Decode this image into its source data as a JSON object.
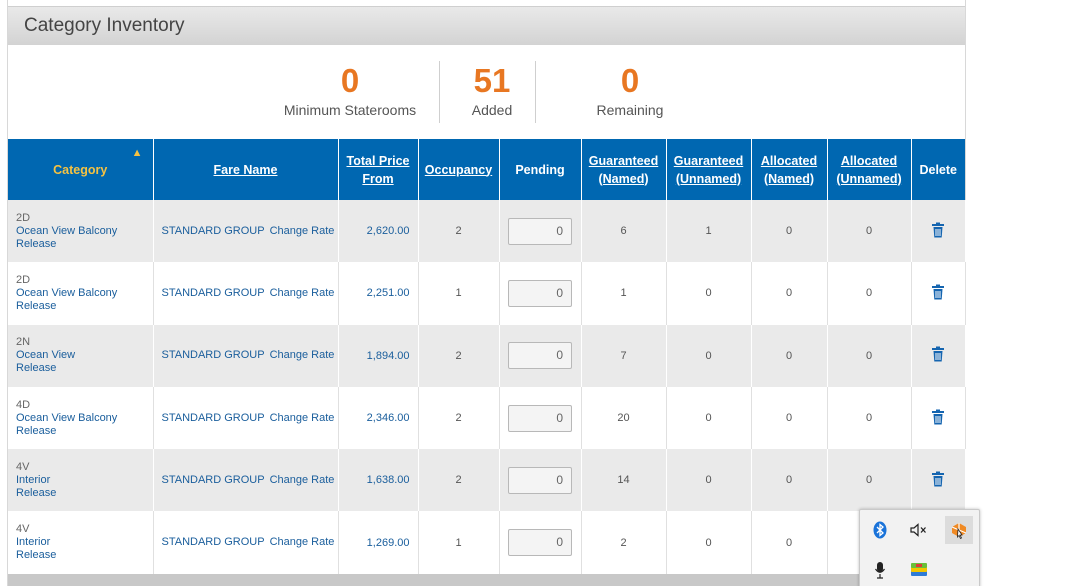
{
  "panel": {
    "title": "Category Inventory"
  },
  "stats": [
    {
      "value": "0",
      "label": "Minimum Staterooms"
    },
    {
      "value": "51",
      "label": "Added"
    },
    {
      "value": "0",
      "label": "Remaining"
    }
  ],
  "table": {
    "headers": {
      "category": "Category",
      "fare_name": "Fare Name",
      "price_l1": "Total Price",
      "price_l2": "From",
      "occupancy": "Occupancy",
      "pending": "Pending",
      "gnamed_l1": "Guaranteed",
      "gnamed_l2": "(Named)",
      "gunnamed_l1": "Guaranteed",
      "gunnamed_l2": "(Unnamed)",
      "anamed_l1": "Allocated",
      "anamed_l2": "(Named)",
      "aunnamed_l1": "Allocated",
      "aunnamed_l2": "(Unnamed)",
      "delete": "Delete"
    },
    "sort": {
      "column": "Category",
      "direction": "ascending"
    },
    "rows": [
      {
        "code": "2D",
        "name": "Ocean View Balcony",
        "release": "Release",
        "fare": "STANDARD GROUP",
        "change": "Change Rate",
        "price": "2,620.00",
        "occupancy": "2",
        "pending": "0",
        "gn": "6",
        "gu": "1",
        "an": "0",
        "au": "0"
      },
      {
        "code": "2D",
        "name": "Ocean View Balcony",
        "release": "Release",
        "fare": "STANDARD GROUP",
        "change": "Change Rate",
        "price": "2,251.00",
        "occupancy": "1",
        "pending": "0",
        "gn": "1",
        "gu": "0",
        "an": "0",
        "au": "0"
      },
      {
        "code": "2N",
        "name": "Ocean View",
        "release": "Release",
        "fare": "STANDARD GROUP",
        "change": "Change Rate",
        "price": "1,894.00",
        "occupancy": "2",
        "pending": "0",
        "gn": "7",
        "gu": "0",
        "an": "0",
        "au": "0"
      },
      {
        "code": "4D",
        "name": "Ocean View Balcony",
        "release": "Release",
        "fare": "STANDARD GROUP",
        "change": "Change Rate",
        "price": "2,346.00",
        "occupancy": "2",
        "pending": "0",
        "gn": "20",
        "gu": "0",
        "an": "0",
        "au": "0"
      },
      {
        "code": "4V",
        "name": "Interior",
        "release": "Release",
        "fare": "STANDARD GROUP",
        "change": "Change Rate",
        "price": "1,638.00",
        "occupancy": "2",
        "pending": "0",
        "gn": "14",
        "gu": "0",
        "an": "0",
        "au": "0"
      },
      {
        "code": "4V",
        "name": "Interior",
        "release": "Release",
        "fare": "STANDARD GROUP",
        "change": "Change Rate",
        "price": "1,269.00",
        "occupancy": "1",
        "pending": "0",
        "gn": "2",
        "gu": "0",
        "an": "0",
        "au": ""
      }
    ]
  },
  "tray": {
    "icons": [
      "bluetooth-icon",
      "volume-muted-icon",
      "app-orange-icon",
      "microphone-icon",
      "bluestacks-icon"
    ]
  },
  "colors": {
    "header_blue": "#0067b1",
    "accent_orange": "#e87722",
    "sort_yellow": "#f5c242",
    "link_blue": "#1a5e9c"
  }
}
